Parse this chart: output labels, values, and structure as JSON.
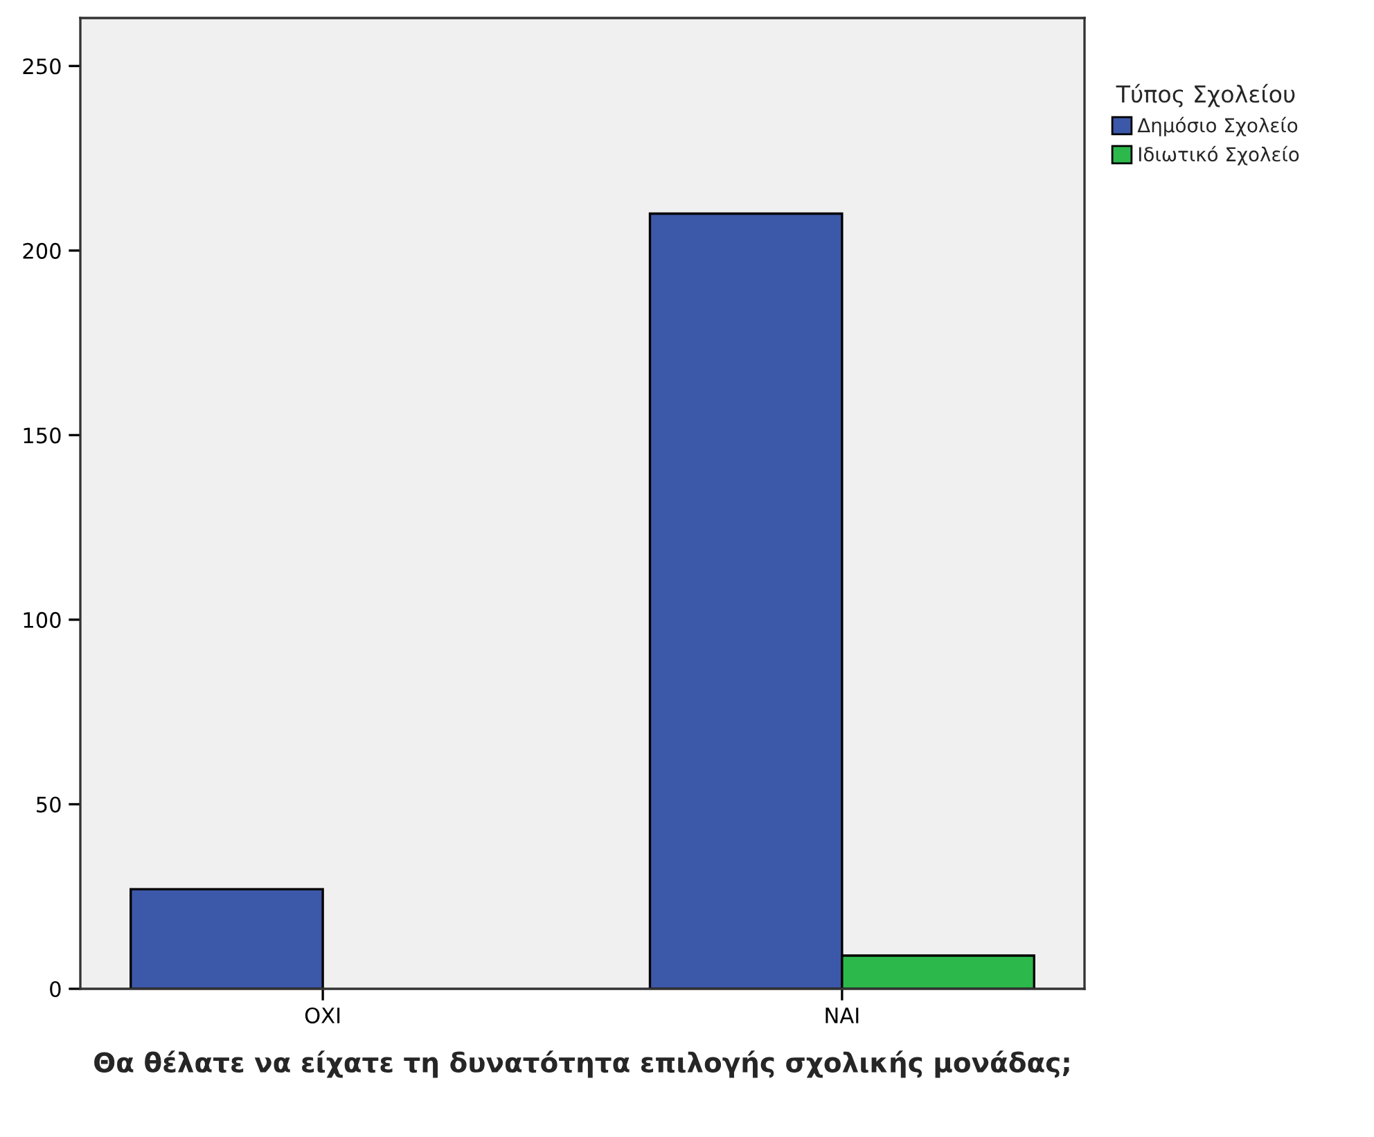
{
  "chart_data": {
    "type": "bar",
    "xlabel": "Θα θέλατε να είχατε τη δυνατότητα επιλογής σχολικής μονάδας;",
    "categories": [
      "ΟΧΙ",
      "ΝΑΙ"
    ],
    "series": [
      {
        "name": "Δημόσιο Σχολείο",
        "color": "#3c58a8",
        "values": [
          27,
          210
        ]
      },
      {
        "name": "Ιδιωτικό Σχολείο",
        "color": "#2db84c",
        "values": [
          null,
          9
        ]
      }
    ],
    "legend_title": "Τύπος Σχολείου",
    "legend": "right",
    "ylim": [
      0,
      263
    ],
    "yticks": [
      0,
      50,
      100,
      150,
      200,
      250
    ],
    "grid": false
  }
}
